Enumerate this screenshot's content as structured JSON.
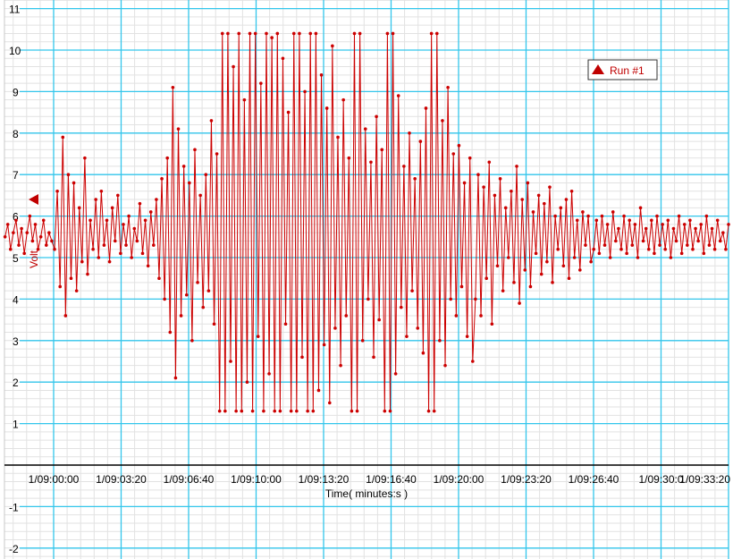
{
  "chart_data": {
    "type": "line",
    "title": "",
    "xlabel": "Time( minutes:s )",
    "ylabel": "Volt",
    "ylim": [
      -2,
      11
    ],
    "yticks": [
      "-2",
      "-1",
      "1",
      "2",
      "3",
      "4",
      "5",
      "6",
      "7",
      "8",
      "9",
      "10",
      "11"
    ],
    "xticks": [
      "1/09:00:00",
      "1/09:03:20",
      "1/09:06:40",
      "1/09:10:00",
      "1/09:13:20",
      "1/09:16:40",
      "1/09:20:00",
      "1/09:23:20",
      "1/09:26:40",
      "1/09:30:0",
      "1/09:33:20"
    ],
    "xlim": [
      "1/08:57:34",
      "1/09:33:20"
    ],
    "grid": true,
    "legend_placement": "top-right",
    "colors": {
      "series": "#cc0000",
      "major_grid": "#33c6ec",
      "minor_grid": "#e2e2e2"
    },
    "series": [
      {
        "name": "Run #1",
        "marker": "triangle",
        "time_start": "1/08:57:36",
        "time_step": "0:08",
        "values": [
          5.5,
          5.8,
          5.2,
          5.6,
          5.9,
          5.3,
          5.7,
          5.1,
          5.6,
          6.0,
          5.4,
          5.8,
          5.2,
          5.5,
          5.9,
          5.3,
          5.6,
          5.4,
          5.2,
          6.6,
          4.3,
          7.9,
          3.6,
          7.0,
          4.5,
          6.8,
          4.2,
          6.2,
          4.9,
          7.4,
          4.6,
          5.9,
          5.2,
          6.4,
          5.0,
          6.6,
          5.3,
          5.9,
          4.9,
          6.2,
          5.4,
          6.5,
          5.1,
          5.8,
          5.3,
          6.0,
          5.0,
          5.7,
          5.4,
          6.3,
          5.1,
          5.9,
          4.8,
          6.1,
          5.3,
          6.4,
          4.5,
          6.9,
          4.0,
          7.4,
          3.2,
          9.1,
          2.1,
          8.1,
          3.6,
          7.2,
          4.1,
          6.8,
          3.0,
          7.6,
          4.4,
          6.5,
          3.8,
          7.0,
          4.2,
          8.3,
          3.4,
          7.5,
          1.3,
          10.4,
          1.3,
          10.4,
          2.5,
          9.6,
          1.3,
          10.4,
          1.3,
          8.8,
          2.0,
          10.4,
          1.3,
          10.4,
          3.1,
          9.2,
          1.3,
          10.4,
          2.2,
          10.3,
          1.3,
          10.4,
          1.3,
          9.8,
          3.4,
          8.5,
          1.3,
          10.4,
          1.3,
          10.4,
          2.6,
          9.0,
          1.3,
          10.4,
          1.3,
          10.4,
          1.8,
          9.4,
          2.9,
          8.6,
          1.5,
          10.1,
          3.3,
          7.9,
          2.4,
          8.8,
          3.6,
          7.4,
          1.3,
          10.4,
          1.3,
          10.4,
          3.0,
          8.1,
          4.0,
          7.3,
          2.6,
          8.4,
          3.5,
          7.6,
          1.3,
          10.4,
          1.3,
          10.4,
          2.2,
          8.9,
          3.8,
          7.2,
          3.1,
          8.0,
          4.2,
          6.9,
          3.3,
          7.8,
          2.7,
          8.6,
          1.3,
          10.4,
          1.3,
          10.4,
          3.0,
          8.3,
          2.4,
          9.1,
          4.0,
          7.5,
          3.6,
          7.7,
          4.3,
          6.8,
          3.1,
          7.4,
          2.5,
          4.0,
          7.0,
          3.6,
          6.7,
          4.5,
          7.3,
          3.4,
          6.5,
          4.8,
          6.9,
          4.2,
          6.2,
          5.0,
          6.6,
          4.4,
          7.2,
          3.9,
          6.4,
          4.7,
          6.8,
          4.3,
          6.1,
          5.1,
          6.5,
          4.6,
          6.3,
          4.9,
          6.7,
          4.4,
          6.0,
          5.2,
          6.2,
          4.8,
          6.4,
          4.5,
          6.6,
          5.0,
          5.9,
          4.7,
          6.1,
          5.3,
          6.0,
          4.9,
          5.2,
          5.9,
          5.1,
          6.0,
          5.3,
          5.8,
          5.0,
          6.1,
          5.4,
          5.7,
          5.2,
          6.0,
          5.1,
          5.9,
          5.3,
          5.8,
          5.0,
          6.2,
          5.4,
          5.7,
          5.2,
          5.9,
          5.1,
          6.0,
          5.3,
          5.8,
          5.2,
          5.9,
          5.0,
          5.7,
          5.4,
          6.0,
          5.1,
          5.8,
          5.3,
          5.9,
          5.2,
          5.7,
          5.4,
          5.8,
          5.1,
          6.0,
          5.3,
          5.7,
          5.2,
          5.9,
          5.4,
          5.6,
          5.2,
          5.8
        ]
      }
    ]
  }
}
